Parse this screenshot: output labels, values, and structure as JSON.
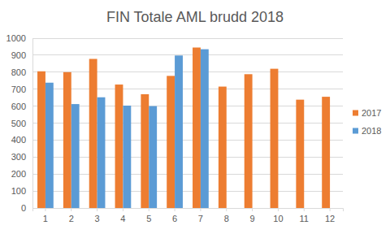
{
  "chart_data": {
    "type": "bar",
    "title": "FIN Totale AML brudd 2018",
    "categories": [
      "1",
      "2",
      "3",
      "4",
      "5",
      "6",
      "7",
      "8",
      "9",
      "10",
      "11",
      "12"
    ],
    "series": [
      {
        "name": "2017",
        "color": "#ed7d31",
        "values": [
          805,
          800,
          878,
          727,
          670,
          778,
          945,
          715,
          788,
          820,
          638,
          655
        ]
      },
      {
        "name": "2018",
        "color": "#5b9bd5",
        "values": [
          738,
          612,
          652,
          603,
          600,
          898,
          935,
          null,
          null,
          null,
          null,
          null
        ]
      }
    ],
    "ylim": [
      0,
      1000
    ],
    "yticks": [
      0,
      100,
      200,
      300,
      400,
      500,
      600,
      700,
      800,
      900,
      1000
    ],
    "grid": true,
    "legend": "right"
  }
}
